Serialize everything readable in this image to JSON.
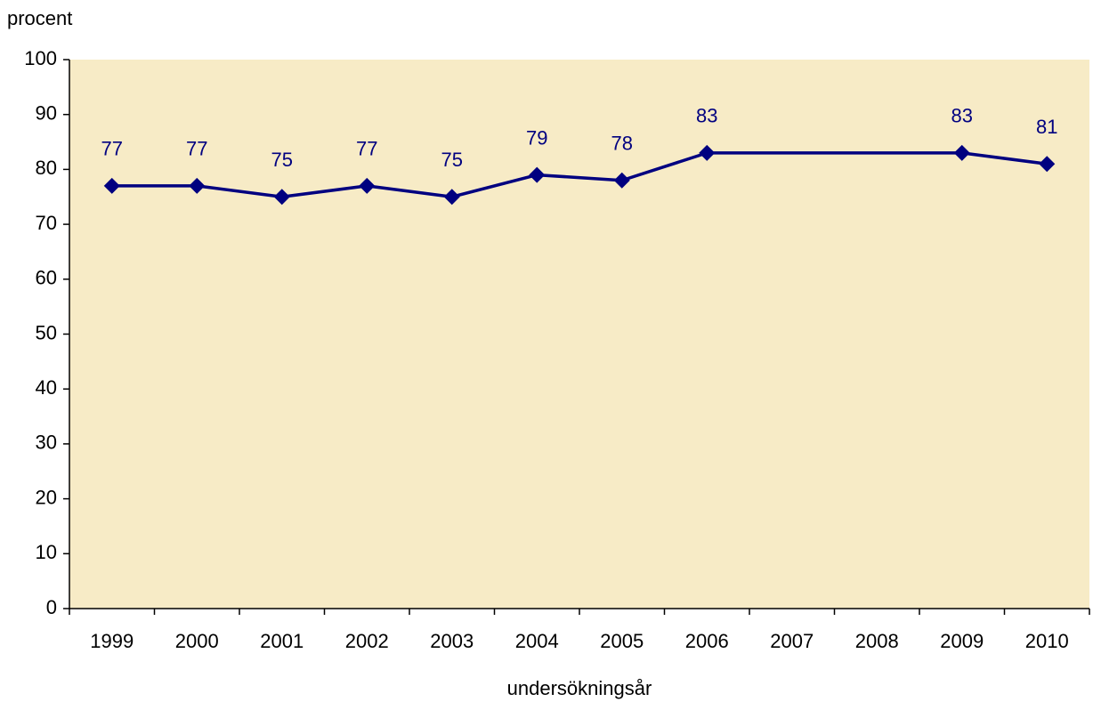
{
  "chart_data": {
    "type": "line",
    "y_label": "procent",
    "x_label": "undersökningsår",
    "x": [
      1999,
      2000,
      2001,
      2002,
      2003,
      2004,
      2005,
      2006,
      2009,
      2010
    ],
    "series": [
      {
        "color": "#000080",
        "values": [
          77,
          77,
          75,
          77,
          75,
          79,
          78,
          83,
          83,
          81
        ]
      }
    ],
    "xlim": [
      1998.5,
      2010.5
    ],
    "xticks": [
      1999,
      2000,
      2001,
      2002,
      2003,
      2004,
      2005,
      2006,
      2007,
      2008,
      2009,
      2010
    ],
    "ylim": [
      0,
      100
    ],
    "yticks": [
      0,
      10,
      20,
      30,
      40,
      50,
      60,
      70,
      80,
      90,
      100
    ],
    "background": "#f7ebc6"
  }
}
